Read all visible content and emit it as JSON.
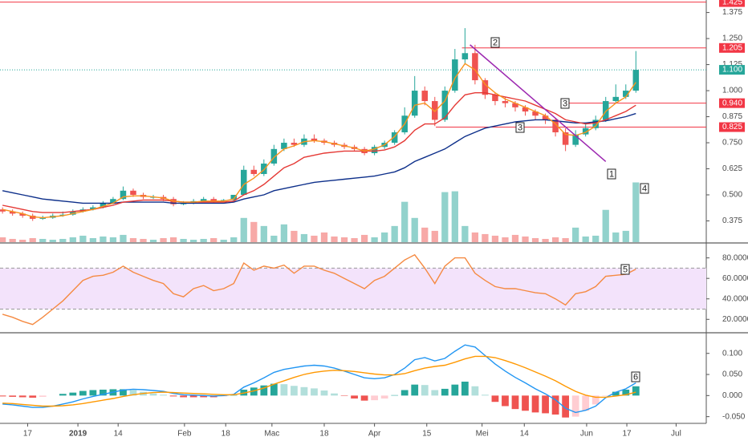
{
  "chart_data": [
    {
      "type": "candlestick",
      "xlim": [
        -0.25,
        70
      ],
      "ylim": [
        0.273,
        1.435
      ],
      "yticks": [
        1.375,
        {
          "value": 1.25,
          "label": "1.250"
        },
        1.125,
        {
          "value": 1,
          "label": "1.000"
        },
        0.875,
        {
          "value": 0.75,
          "label": "0.750"
        },
        0.625,
        {
          "value": 0.5,
          "label": "0.500"
        },
        0.375
      ],
      "up_color": "#26a69a",
      "down_color": "#ef5350",
      "open": [
        0.43,
        0.42,
        0.41,
        0.4,
        0.385,
        0.39,
        0.4,
        0.405,
        0.42,
        0.43,
        0.44,
        0.46,
        0.48,
        0.52,
        0.5,
        0.49,
        0.49,
        0.48,
        0.455,
        0.46,
        0.47,
        0.48,
        0.47,
        0.475,
        0.5,
        0.62,
        0.6,
        0.65,
        0.72,
        0.75,
        0.74,
        0.77,
        0.76,
        0.75,
        0.74,
        0.73,
        0.72,
        0.7,
        0.73,
        0.75,
        0.8,
        0.88,
        1.0,
        0.95,
        0.86,
        1.0,
        1.15,
        1.18,
        1.05,
        0.98,
        0.95,
        0.94,
        0.92,
        0.9,
        0.88,
        0.86,
        0.8,
        0.74,
        0.79,
        0.82,
        0.86,
        0.95,
        0.97,
        1.0
      ],
      "high": [
        0.44,
        0.43,
        0.42,
        0.41,
        0.4,
        0.41,
        0.42,
        0.43,
        0.44,
        0.45,
        0.47,
        0.49,
        0.54,
        0.53,
        0.51,
        0.5,
        0.5,
        0.49,
        0.47,
        0.48,
        0.49,
        0.49,
        0.48,
        0.5,
        0.64,
        0.64,
        0.67,
        0.74,
        0.77,
        0.77,
        0.79,
        0.79,
        0.77,
        0.76,
        0.75,
        0.74,
        0.73,
        0.74,
        0.76,
        0.81,
        0.92,
        1.07,
        1.02,
        0.97,
        1.02,
        1.2,
        1.3,
        1.22,
        1.06,
        0.99,
        0.97,
        0.95,
        0.93,
        0.91,
        0.89,
        0.87,
        0.82,
        0.81,
        0.84,
        0.88,
        0.97,
        1.03,
        1.03,
        1.19
      ],
      "low": [
        0.41,
        0.4,
        0.39,
        0.375,
        0.38,
        0.385,
        0.395,
        0.4,
        0.415,
        0.425,
        0.435,
        0.455,
        0.475,
        0.49,
        0.48,
        0.48,
        0.47,
        0.445,
        0.45,
        0.455,
        0.465,
        0.46,
        0.465,
        0.47,
        0.5,
        0.59,
        0.59,
        0.64,
        0.71,
        0.73,
        0.73,
        0.75,
        0.74,
        0.73,
        0.72,
        0.71,
        0.69,
        0.69,
        0.72,
        0.74,
        0.79,
        0.87,
        0.93,
        0.83,
        0.85,
        0.99,
        1.13,
        1.03,
        0.96,
        0.93,
        0.92,
        0.9,
        0.88,
        0.86,
        0.84,
        0.78,
        0.71,
        0.73,
        0.78,
        0.81,
        0.85,
        0.94,
        0.96,
        0.99
      ],
      "close": [
        0.42,
        0.41,
        0.4,
        0.385,
        0.39,
        0.4,
        0.405,
        0.42,
        0.43,
        0.44,
        0.46,
        0.48,
        0.52,
        0.5,
        0.49,
        0.49,
        0.48,
        0.455,
        0.46,
        0.47,
        0.48,
        0.47,
        0.475,
        0.5,
        0.62,
        0.6,
        0.65,
        0.72,
        0.75,
        0.74,
        0.77,
        0.76,
        0.75,
        0.74,
        0.73,
        0.72,
        0.7,
        0.73,
        0.75,
        0.8,
        0.88,
        1.0,
        0.95,
        0.86,
        1.0,
        1.15,
        1.18,
        1.05,
        0.98,
        0.95,
        0.94,
        0.92,
        0.9,
        0.88,
        0.86,
        0.8,
        0.74,
        0.79,
        0.82,
        0.86,
        0.95,
        0.97,
        1.0,
        1.1
      ],
      "volume_ylim": [
        0,
        300
      ],
      "volume": [
        6,
        4,
        3,
        5,
        4,
        3,
        4,
        6,
        8,
        5,
        7,
        6,
        9,
        5,
        4,
        3,
        5,
        6,
        4,
        3,
        4,
        5,
        3,
        6,
        30,
        25,
        20,
        8,
        22,
        14,
        10,
        8,
        12,
        7,
        6,
        5,
        9,
        6,
        12,
        20,
        50,
        30,
        18,
        14,
        62,
        63,
        20,
        12,
        10,
        8,
        6,
        9,
        7,
        5,
        4,
        6,
        5,
        18,
        7,
        8,
        40,
        12,
        14,
        74
      ],
      "series": [
        {
          "color": "#0d2f8a",
          "values": [
            0.52,
            0.51,
            0.5,
            0.49,
            0.48,
            0.475,
            0.47,
            0.465,
            0.46,
            0.46,
            0.46,
            0.46,
            0.465,
            0.465,
            0.465,
            0.465,
            0.465,
            0.46,
            0.46,
            0.46,
            0.46,
            0.46,
            0.46,
            0.465,
            0.48,
            0.49,
            0.5,
            0.52,
            0.53,
            0.54,
            0.55,
            0.56,
            0.565,
            0.57,
            0.575,
            0.58,
            0.585,
            0.59,
            0.6,
            0.61,
            0.63,
            0.66,
            0.68,
            0.7,
            0.72,
            0.75,
            0.78,
            0.8,
            0.82,
            0.83,
            0.84,
            0.85,
            0.855,
            0.86,
            0.86,
            0.855,
            0.85,
            0.845,
            0.845,
            0.85,
            0.855,
            0.865,
            0.875,
            0.89
          ]
        },
        {
          "color": "#e53935",
          "values": [
            0.45,
            0.44,
            0.43,
            0.42,
            0.415,
            0.415,
            0.415,
            0.42,
            0.425,
            0.43,
            0.44,
            0.45,
            0.465,
            0.47,
            0.475,
            0.475,
            0.475,
            0.47,
            0.465,
            0.465,
            0.465,
            0.465,
            0.465,
            0.47,
            0.5,
            0.52,
            0.55,
            0.59,
            0.63,
            0.65,
            0.68,
            0.69,
            0.7,
            0.705,
            0.71,
            0.71,
            0.71,
            0.71,
            0.715,
            0.73,
            0.76,
            0.81,
            0.84,
            0.84,
            0.87,
            0.93,
            0.98,
            0.99,
            0.99,
            0.98,
            0.97,
            0.96,
            0.95,
            0.93,
            0.91,
            0.89,
            0.86,
            0.85,
            0.84,
            0.845,
            0.86,
            0.88,
            0.9,
            0.93
          ]
        },
        {
          "color": "#f7931e",
          "values": [
            0.43,
            0.42,
            0.41,
            0.395,
            0.39,
            0.395,
            0.4,
            0.41,
            0.42,
            0.43,
            0.445,
            0.46,
            0.49,
            0.495,
            0.495,
            0.49,
            0.485,
            0.47,
            0.465,
            0.465,
            0.47,
            0.47,
            0.47,
            0.48,
            0.55,
            0.58,
            0.62,
            0.68,
            0.72,
            0.735,
            0.755,
            0.76,
            0.755,
            0.745,
            0.735,
            0.725,
            0.71,
            0.72,
            0.74,
            0.78,
            0.84,
            0.93,
            0.94,
            0.9,
            0.95,
            1.06,
            1.13,
            1.1,
            1.03,
            0.99,
            0.96,
            0.94,
            0.92,
            0.9,
            0.88,
            0.84,
            0.79,
            0.785,
            0.8,
            0.83,
            0.9,
            0.94,
            0.97,
            1.04
          ]
        }
      ],
      "levels": [
        {
          "value": 1.425,
          "label": "1.425",
          "color": "#f23645",
          "from": -0.25
        },
        {
          "value": 1.205,
          "label": "1.205",
          "color": "#f23645",
          "from": 45.7
        },
        {
          "value": 0.94,
          "label": "0.940",
          "color": "#f23645",
          "from": 55.8
        },
        {
          "value": 0.825,
          "label": "0.825",
          "color": "#f23645",
          "from": 43.1
        }
      ],
      "price_line": {
        "value": 1.1,
        "label": "1.100",
        "color": "#26a69a"
      },
      "trendline": {
        "x": [
          46.5,
          60
        ],
        "values": [
          1.22,
          0.66
        ],
        "color": "#9c27b0"
      },
      "annotations": [
        "2",
        "3",
        "3",
        "1",
        "4"
      ]
    },
    {
      "type": "line",
      "xlim": [
        -0.25,
        70
      ],
      "ylim": [
        7.7,
        93.8
      ],
      "yticks": [
        {
          "value": 80,
          "label": "80.0000"
        },
        {
          "value": 60,
          "label": "60.0000"
        },
        {
          "value": 40,
          "label": "40.0000"
        },
        {
          "value": 20,
          "label": "20.0000"
        }
      ],
      "band": [
        30,
        70
      ],
      "series": [
        {
          "color": "#f58a42",
          "values": [
            25,
            22,
            18,
            15,
            22,
            30,
            38,
            48,
            58,
            62,
            63,
            66,
            72,
            66,
            62,
            58,
            55,
            45,
            42,
            50,
            53,
            48,
            50,
            55,
            75,
            68,
            72,
            70,
            73,
            65,
            72,
            72,
            68,
            65,
            60,
            55,
            50,
            58,
            62,
            70,
            78,
            83,
            70,
            55,
            72,
            80,
            80,
            65,
            58,
            52,
            50,
            50,
            48,
            46,
            45,
            40,
            34,
            45,
            47,
            52,
            62,
            63,
            64,
            69
          ]
        }
      ],
      "annotations": [
        "5"
      ]
    },
    {
      "type": "macd",
      "xlim": [
        -0.25,
        70
      ],
      "ylim": [
        -0.064,
        0.147
      ],
      "yticks": [
        {
          "value": 0.1,
          "label": "0.100"
        },
        {
          "value": 0.05,
          "label": "0.050"
        },
        {
          "value": 0,
          "label": "0.000"
        },
        {
          "value": -0.05,
          "label": "-0.050"
        }
      ],
      "series": [
        {
          "color": "#2196f3",
          "values": [
            -0.02,
            -0.022,
            -0.025,
            -0.028,
            -0.028,
            -0.025,
            -0.02,
            -0.015,
            -0.008,
            -0.002,
            0.003,
            0.008,
            0.013,
            0.015,
            0.014,
            0.012,
            0.01,
            0.005,
            0.002,
            0.001,
            0.0,
            -0.001,
            0.0,
            0.003,
            0.02,
            0.03,
            0.042,
            0.055,
            0.062,
            0.066,
            0.07,
            0.072,
            0.07,
            0.065,
            0.058,
            0.05,
            0.042,
            0.04,
            0.042,
            0.05,
            0.065,
            0.085,
            0.09,
            0.082,
            0.088,
            0.105,
            0.12,
            0.115,
            0.095,
            0.075,
            0.058,
            0.043,
            0.03,
            0.016,
            0.004,
            -0.01,
            -0.03,
            -0.04,
            -0.035,
            -0.025,
            -0.005,
            0.008,
            0.016,
            0.03
          ]
        },
        {
          "color": "#ff9800",
          "values": [
            -0.018,
            -0.019,
            -0.021,
            -0.023,
            -0.025,
            -0.025,
            -0.024,
            -0.022,
            -0.019,
            -0.015,
            -0.011,
            -0.007,
            -0.002,
            0.002,
            0.005,
            0.007,
            0.008,
            0.007,
            0.006,
            0.005,
            0.004,
            0.003,
            0.002,
            0.002,
            0.006,
            0.011,
            0.018,
            0.027,
            0.035,
            0.043,
            0.05,
            0.055,
            0.058,
            0.06,
            0.059,
            0.057,
            0.054,
            0.051,
            0.049,
            0.049,
            0.052,
            0.059,
            0.065,
            0.069,
            0.072,
            0.079,
            0.087,
            0.093,
            0.093,
            0.09,
            0.083,
            0.075,
            0.066,
            0.056,
            0.046,
            0.035,
            0.022,
            0.01,
            0.001,
            -0.004,
            -0.004,
            -0.001,
            0.002,
            0.008
          ]
        }
      ],
      "histogram": [
        -0.002,
        -0.003,
        -0.004,
        -0.005,
        -0.003,
        0.0,
        0.004,
        0.007,
        0.011,
        0.013,
        0.014,
        0.015,
        0.015,
        0.013,
        0.009,
        0.005,
        0.002,
        -0.002,
        -0.004,
        -0.004,
        -0.004,
        -0.004,
        -0.002,
        0.001,
        0.014,
        0.019,
        0.024,
        0.028,
        0.027,
        0.023,
        0.02,
        0.017,
        0.012,
        0.005,
        -0.001,
        -0.007,
        -0.012,
        -0.011,
        -0.007,
        0.001,
        0.013,
        0.026,
        0.025,
        0.013,
        0.016,
        0.026,
        0.033,
        0.022,
        0.002,
        -0.015,
        -0.025,
        -0.032,
        -0.036,
        -0.04,
        -0.042,
        -0.045,
        -0.052,
        -0.05,
        -0.036,
        -0.021,
        -0.001,
        0.009,
        0.014,
        0.022
      ],
      "xticks": [
        {
          "value": 2.5,
          "label": "17"
        },
        {
          "value": 7.5,
          "label": "2019"
        },
        {
          "value": 11.5,
          "label": "14"
        },
        {
          "value": 18.1,
          "label": "Feb"
        },
        {
          "value": 22.2,
          "label": "18"
        },
        {
          "value": 26.8,
          "label": "Mac"
        },
        {
          "value": 32,
          "label": "18"
        },
        {
          "value": 37,
          "label": "Apr"
        },
        {
          "value": 42.2,
          "label": "15"
        },
        {
          "value": 47.7,
          "label": "Mei"
        },
        {
          "value": 51.9,
          "label": "14"
        },
        {
          "value": 58.1,
          "label": "Jun"
        },
        {
          "value": 62.1,
          "label": "17"
        },
        {
          "value": 67,
          "label": "Jul"
        }
      ],
      "annotations": [
        "6"
      ]
    }
  ]
}
